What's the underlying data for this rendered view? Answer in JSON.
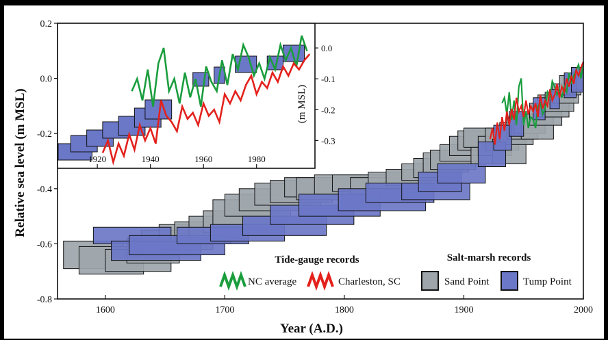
{
  "chart_data": [
    {
      "type": "scatter",
      "description_role": "main",
      "xlabel": "Year (A.D.)",
      "ylabel": "Relative sea level (m MSL)",
      "xlim": [
        1560,
        2000
      ],
      "ylim": [
        -0.8,
        0.2
      ],
      "xticks": [
        1600,
        1700,
        1800,
        1900,
        2000
      ],
      "yticks": [
        0.2,
        0.0,
        -0.2,
        -0.4,
        -0.6,
        -0.8
      ],
      "grid": false,
      "legend_position": "bottom-right",
      "legend": {
        "tide_title": "Tide-gauge records",
        "marsh_title": "Salt-marsh records",
        "nc": "NC average",
        "charleston": "Charleston, SC",
        "sand": "Sand Point",
        "tump": "Tump Point"
      },
      "series": [
        {
          "name": "Sand Point",
          "kind": "error-box",
          "color": "#9ea6ab",
          "boxes": [
            [
              1565,
              1615,
              -0.69,
              -0.59
            ],
            [
              1578,
              1632,
              -0.71,
              -0.61
            ],
            [
              1600,
              1655,
              -0.7,
              -0.62
            ],
            [
              1618,
              1662,
              -0.67,
              -0.58
            ],
            [
              1630,
              1668,
              -0.64,
              -0.55
            ],
            [
              1645,
              1690,
              -0.62,
              -0.53
            ],
            [
              1658,
              1705,
              -0.6,
              -0.52
            ],
            [
              1670,
              1720,
              -0.58,
              -0.5
            ],
            [
              1682,
              1735,
              -0.56,
              -0.48
            ],
            [
              1690,
              1745,
              -0.53,
              -0.44
            ],
            [
              1700,
              1755,
              -0.5,
              -0.42
            ],
            [
              1712,
              1768,
              -0.48,
              -0.4
            ],
            [
              1725,
              1780,
              -0.46,
              -0.38
            ],
            [
              1738,
              1790,
              -0.45,
              -0.37
            ],
            [
              1750,
              1800,
              -0.43,
              -0.36
            ],
            [
              1760,
              1812,
              -0.44,
              -0.36
            ],
            [
              1775,
              1830,
              -0.42,
              -0.35
            ],
            [
              1790,
              1845,
              -0.41,
              -0.35
            ],
            [
              1805,
              1860,
              -0.42,
              -0.36
            ],
            [
              1820,
              1872,
              -0.4,
              -0.34
            ],
            [
              1835,
              1882,
              -0.39,
              -0.33
            ],
            [
              1848,
              1890,
              -0.37,
              -0.31
            ],
            [
              1858,
              1898,
              -0.36,
              -0.29
            ],
            [
              1866,
              1904,
              -0.34,
              -0.27
            ],
            [
              1872,
              1910,
              -0.33,
              -0.26
            ],
            [
              1880,
              1916,
              -0.3,
              -0.24
            ],
            [
              1888,
              1920,
              -0.28,
              -0.21
            ],
            [
              1895,
              1926,
              -0.26,
              -0.19
            ],
            [
              1900,
              1930,
              -0.25,
              -0.18
            ],
            [
              1906,
              1934,
              -0.31,
              -0.25
            ],
            [
              1912,
              1940,
              -0.28,
              -0.21
            ],
            [
              1918,
              1946,
              -0.26,
              -0.18
            ],
            [
              1924,
              1952,
              -0.31,
              -0.22
            ],
            [
              1930,
              1958,
              -0.24,
              -0.16
            ],
            [
              1936,
              1962,
              -0.22,
              -0.14
            ],
            [
              1942,
              1968,
              -0.2,
              -0.12
            ],
            [
              1948,
              1975,
              -0.22,
              -0.13
            ],
            [
              1955,
              1982,
              -0.17,
              -0.09
            ],
            [
              1962,
              1988,
              -0.14,
              -0.06
            ],
            [
              1968,
              1992,
              -0.12,
              -0.05
            ],
            [
              1974,
              1996,
              -0.09,
              -0.02
            ],
            [
              1980,
              1998,
              -0.06,
              0.01
            ],
            [
              1985,
              2000,
              -0.04,
              0.02
            ]
          ]
        },
        {
          "name": "Tump Point",
          "kind": "error-box",
          "color": "#6b77c7",
          "boxes": [
            [
              1590,
              1655,
              -0.6,
              -0.54
            ],
            [
              1605,
              1680,
              -0.66,
              -0.59
            ],
            [
              1620,
              1700,
              -0.64,
              -0.57
            ],
            [
              1660,
              1720,
              -0.6,
              -0.54
            ],
            [
              1688,
              1750,
              -0.59,
              -0.53
            ],
            [
              1715,
              1785,
              -0.57,
              -0.5
            ],
            [
              1738,
              1808,
              -0.53,
              -0.46
            ],
            [
              1762,
              1830,
              -0.5,
              -0.42
            ],
            [
              1795,
              1868,
              -0.48,
              -0.4
            ],
            [
              1818,
              1875,
              -0.45,
              -0.38
            ],
            [
              1848,
              1905,
              -0.44,
              -0.38
            ],
            [
              1862,
              1898,
              -0.41,
              -0.34
            ],
            [
              1878,
              1918,
              -0.38,
              -0.31
            ],
            [
              1912,
              1935,
              -0.32,
              -0.23
            ],
            [
              1925,
              1940,
              -0.26,
              -0.17
            ],
            [
              1938,
              1950,
              -0.21,
              -0.12
            ],
            [
              1958,
              1968,
              -0.15,
              -0.07
            ],
            [
              1972,
              1980,
              -0.11,
              -0.04
            ],
            [
              1984,
              1994,
              -0.07,
              0.02
            ],
            [
              1990,
              2000,
              -0.05,
              0.04
            ]
          ]
        },
        {
          "name": "NC average",
          "kind": "line",
          "color": "#1a9d3d",
          "x": [
            1932,
            1934,
            1936,
            1938,
            1940,
            1942,
            1944,
            1946,
            1948,
            1950,
            1952,
            1954,
            1956,
            1958,
            1960,
            1962,
            1964,
            1966,
            1968,
            1970,
            1972,
            1974,
            1976,
            1978,
            1980,
            1982,
            1984,
            1986,
            1988,
            1990,
            1992,
            1994,
            1996,
            1998,
            2000
          ],
          "y": [
            -0.09,
            -0.07,
            -0.13,
            -0.05,
            -0.15,
            -0.08,
            -0.17,
            -0.03,
            0.0,
            -0.17,
            -0.12,
            -0.18,
            -0.14,
            -0.15,
            -0.18,
            -0.1,
            -0.09,
            -0.13,
            -0.11,
            -0.05,
            -0.07,
            -0.01,
            -0.03,
            -0.06,
            -0.04,
            -0.07,
            -0.03,
            -0.05,
            0.02,
            -0.02,
            0.01,
            0.03,
            0.05,
            0.0,
            0.06
          ]
        },
        {
          "name": "Charleston, SC",
          "kind": "line",
          "color": "#e3211c",
          "x": [
            1922,
            1924,
            1926,
            1928,
            1930,
            1932,
            1934,
            1936,
            1938,
            1940,
            1942,
            1944,
            1946,
            1948,
            1950,
            1952,
            1954,
            1956,
            1958,
            1960,
            1962,
            1964,
            1966,
            1968,
            1970,
            1972,
            1974,
            1976,
            1978,
            1980,
            1982,
            1984,
            1986,
            1988,
            1990,
            1992,
            1994,
            1996,
            1998,
            2000
          ],
          "y": [
            -0.22,
            -0.18,
            -0.24,
            -0.16,
            -0.22,
            -0.14,
            -0.19,
            -0.12,
            -0.17,
            -0.11,
            -0.15,
            -0.07,
            -0.12,
            -0.1,
            -0.14,
            -0.08,
            -0.13,
            -0.1,
            -0.12,
            -0.09,
            -0.14,
            -0.06,
            -0.11,
            -0.08,
            -0.1,
            -0.04,
            -0.08,
            -0.06,
            -0.02,
            -0.07,
            -0.03,
            -0.05,
            0.0,
            -0.03,
            0.01,
            -0.02,
            0.03,
            0.01,
            0.04,
            0.06
          ]
        }
      ]
    },
    {
      "type": "line",
      "description_role": "inset",
      "xticks": [
        1920,
        1940,
        1960,
        1980
      ],
      "xlim": [
        1905,
        2002
      ],
      "yticks_left": [
        0.2,
        0.0,
        -0.2
      ],
      "ylim_left": [
        -0.33,
        0.2
      ],
      "ylabel_right": "(m MSL)",
      "yticks_right": [
        "0.0",
        "-0.1",
        "-0.2",
        "-0.3"
      ],
      "ylim_right": [
        -0.39,
        0.08
      ],
      "boxes": [
        [
          1904,
          1918,
          -0.3,
          -0.24
        ],
        [
          1910,
          1920,
          -0.27,
          -0.21
        ],
        [
          1916,
          1926,
          -0.25,
          -0.19
        ],
        [
          1922,
          1932,
          -0.22,
          -0.16
        ],
        [
          1928,
          1938,
          -0.21,
          -0.14
        ],
        [
          1934,
          1944,
          -0.18,
          -0.11
        ],
        [
          1938,
          1948,
          -0.15,
          -0.08
        ],
        [
          1956,
          1962,
          -0.03,
          0.02
        ],
        [
          1964,
          1968,
          -0.02,
          0.04
        ],
        [
          1972,
          1980,
          0.02,
          0.08
        ],
        [
          1984,
          1990,
          0.03,
          0.08
        ],
        [
          1990,
          1998,
          0.06,
          0.12
        ]
      ],
      "series": [
        {
          "name": "NC average",
          "color": "#1a9d3d",
          "x": [
            1933,
            1935,
            1937,
            1939,
            1941,
            1943,
            1945,
            1947,
            1949,
            1951,
            1953,
            1955,
            1957,
            1959,
            1961,
            1963,
            1965,
            1967,
            1969,
            1971,
            1973,
            1975,
            1977,
            1979,
            1981,
            1983,
            1985,
            1987,
            1989,
            1991,
            1993,
            1995,
            1997,
            1999
          ],
          "y": [
            -0.14,
            -0.1,
            -0.17,
            -0.07,
            -0.19,
            -0.05,
            0.0,
            -0.14,
            -0.1,
            -0.18,
            -0.08,
            -0.16,
            -0.1,
            -0.19,
            -0.06,
            -0.11,
            -0.14,
            -0.04,
            -0.12,
            -0.02,
            -0.07,
            0.01,
            -0.03,
            -0.09,
            -0.05,
            -0.1,
            -0.03,
            -0.07,
            0.01,
            -0.04,
            0.0,
            -0.06,
            0.04,
            -0.01
          ]
        },
        {
          "name": "Charleston, SC",
          "color": "#e3211c",
          "x": [
            1922,
            1924,
            1926,
            1928,
            1930,
            1932,
            1934,
            1936,
            1938,
            1940,
            1942,
            1944,
            1946,
            1948,
            1950,
            1952,
            1954,
            1956,
            1958,
            1960,
            1962,
            1964,
            1966,
            1968,
            1970,
            1972,
            1974,
            1976,
            1978,
            1980,
            1982,
            1984,
            1986,
            1988,
            1990,
            1992,
            1994,
            1996,
            1998,
            2000
          ],
          "y": [
            -0.34,
            -0.3,
            -0.37,
            -0.31,
            -0.35,
            -0.28,
            -0.33,
            -0.25,
            -0.3,
            -0.26,
            -0.31,
            -0.17,
            -0.22,
            -0.24,
            -0.27,
            -0.19,
            -0.23,
            -0.21,
            -0.25,
            -0.18,
            -0.22,
            -0.2,
            -0.24,
            -0.15,
            -0.18,
            -0.14,
            -0.17,
            -0.12,
            -0.09,
            -0.15,
            -0.11,
            -0.13,
            -0.08,
            -0.11,
            -0.06,
            -0.09,
            -0.05,
            -0.07,
            -0.04,
            -0.02
          ]
        }
      ]
    }
  ]
}
